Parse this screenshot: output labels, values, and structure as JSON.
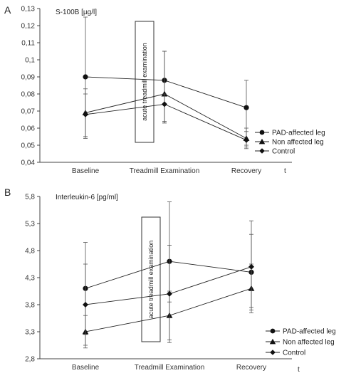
{
  "chart_data": [
    {
      "type": "line",
      "panel_label": "A",
      "ylabel": "S-100B [µg/l]",
      "xlabel": "t",
      "categories": [
        "Baseline",
        "Treadmill Examination",
        "Recovery"
      ],
      "ylim": [
        0.04,
        0.13
      ],
      "yticks": [
        "0,04",
        "0,05",
        "0,06",
        "0,07",
        "0,08",
        "0,09",
        "0,1",
        "0,11",
        "0,12",
        "0,13"
      ],
      "annotation": "acute treadmill examination",
      "legend_position": "right",
      "grid": false,
      "series": [
        {
          "name": "PAD-affected leg",
          "marker": "circle",
          "values": [
            0.09,
            0.088,
            0.072
          ],
          "err_low": [
            0.035,
            0.024,
            0.022
          ],
          "err_high": [
            0.035,
            0.017,
            0.016
          ]
        },
        {
          "name": "Non affected leg",
          "marker": "triangle",
          "values": [
            0.069,
            0.08,
            0.054
          ],
          "err_low": [
            0.014,
            0.017,
            0.006
          ],
          "err_high": [
            0.014,
            0.025,
            0.006
          ]
        },
        {
          "name": "Control",
          "marker": "diamond",
          "values": [
            0.068,
            0.074,
            0.053
          ],
          "err_low": [
            0.014,
            0.011,
            0.004
          ],
          "err_high": [
            0.012,
            0.006,
            0.005
          ]
        }
      ]
    },
    {
      "type": "line",
      "panel_label": "B",
      "ylabel": "Interleukin-6 [pg/ml]",
      "xlabel": "t",
      "categories": [
        "Baseline",
        "Treadmill Examination",
        "Recovery"
      ],
      "ylim": [
        2.8,
        5.8
      ],
      "yticks": [
        "2,8",
        "3,3",
        "3,8",
        "4,3",
        "4,8",
        "5,3",
        "5,8"
      ],
      "annotation": "acute treadmill examination",
      "legend_position": "right",
      "grid": false,
      "series": [
        {
          "name": "PAD-affected leg",
          "marker": "circle",
          "values": [
            4.1,
            4.6,
            4.4
          ],
          "err_low": [
            0.85,
            0.75,
            0.7
          ],
          "err_high": [
            0.85,
            1.1,
            0.95
          ]
        },
        {
          "name": "Non affected leg",
          "marker": "triangle",
          "values": [
            3.3,
            3.6,
            4.1
          ],
          "err_low": [
            0.3,
            0.45,
            0.45
          ],
          "err_high": [
            0.3,
            0.45,
            0.45
          ]
        },
        {
          "name": "Control",
          "marker": "diamond",
          "values": [
            3.8,
            4.0,
            4.5
          ],
          "err_low": [
            0.75,
            0.9,
            0.75
          ],
          "err_high": [
            0.75,
            0.9,
            0.6
          ]
        }
      ]
    }
  ]
}
